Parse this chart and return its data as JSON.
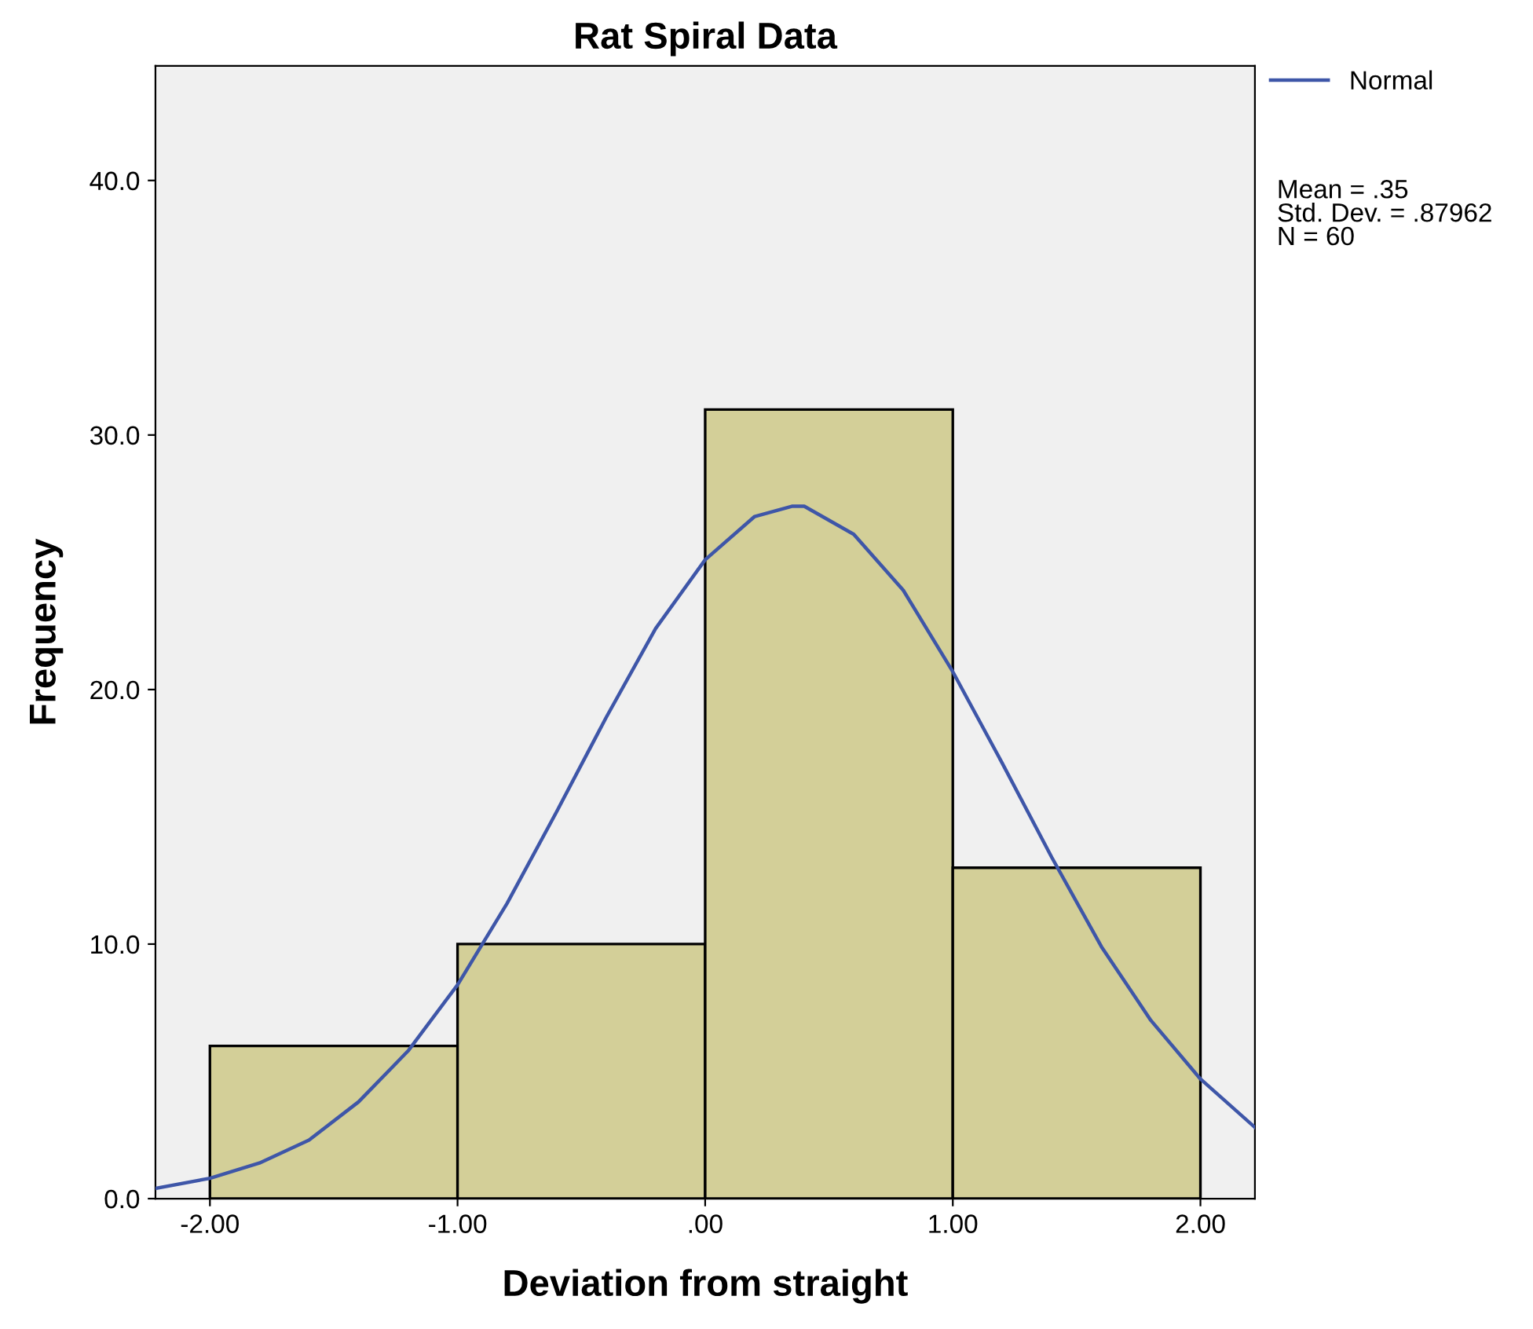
{
  "chart_data": {
    "type": "histogram",
    "title": "Rat Spiral Data",
    "xlabel": "Deviation from straight",
    "ylabel": "Frequency",
    "bins": [
      -2,
      -1,
      0,
      1,
      2
    ],
    "values": [
      6,
      10,
      31,
      13
    ],
    "color": "#d3cf98",
    "series": [
      {
        "name": "Normal",
        "type": "line",
        "color": "#3e56a8",
        "x": [
          -2.22,
          -2.0,
          -1.8,
          -1.6,
          -1.4,
          -1.2,
          -1.0,
          -0.8,
          -0.6,
          -0.4,
          -0.2,
          0.0,
          0.2,
          0.35,
          0.4,
          0.6,
          0.8,
          1.0,
          1.2,
          1.4,
          1.6,
          1.8,
          2.0,
          2.22
        ],
        "values": [
          0.4,
          0.8,
          1.4,
          2.3,
          3.8,
          5.8,
          8.4,
          11.6,
          15.2,
          18.9,
          22.4,
          25.1,
          26.8,
          27.2,
          27.2,
          26.1,
          23.9,
          20.7,
          17.1,
          13.4,
          9.9,
          7.0,
          4.7,
          2.8
        ]
      }
    ],
    "xlim": [
      -2.22,
      2.22
    ],
    "ylim": [
      0,
      44.5
    ],
    "xticks": [
      {
        "value": -2,
        "label": "-2.00"
      },
      {
        "value": -1,
        "label": "-1.00"
      },
      {
        "value": 0,
        "label": ".00"
      },
      {
        "value": 1,
        "label": "1.00"
      },
      {
        "value": 2,
        "label": "2.00"
      }
    ],
    "yticks": [
      {
        "value": 0,
        "label": "0.0"
      },
      {
        "value": 10,
        "label": "10.0"
      },
      {
        "value": 20,
        "label": "20.0"
      },
      {
        "value": 30,
        "label": "30.0"
      },
      {
        "value": 40,
        "label": "40.0"
      }
    ],
    "annotations": [
      "Mean = .35\nStd. Dev. = .87962\nN = 60"
    ],
    "legend": "top right",
    "grid": false
  }
}
